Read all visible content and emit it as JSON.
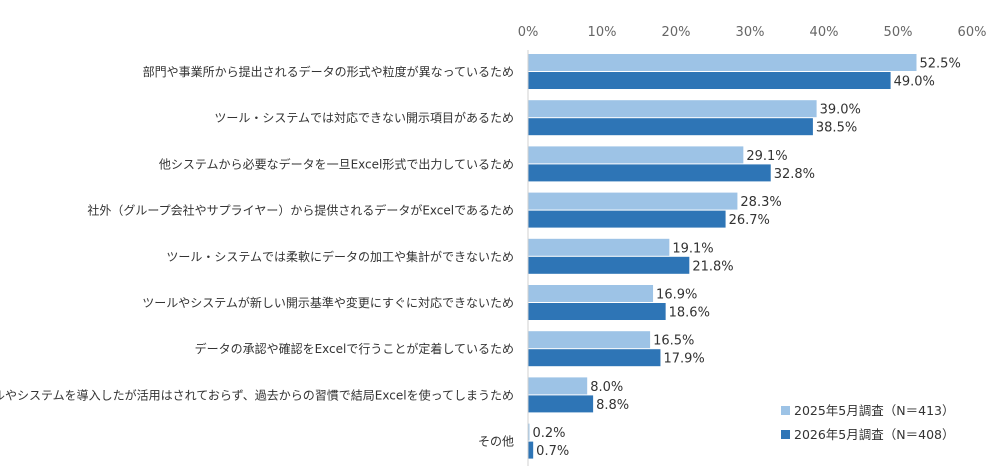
{
  "chart_data": {
    "type": "bar",
    "orientation": "horizontal",
    "title": "",
    "xlabel": "",
    "ylabel": "",
    "xlim": [
      0,
      60
    ],
    "x_ticks": [
      "0%",
      "10%",
      "20%",
      "30%",
      "40%",
      "50%",
      "60%"
    ],
    "grid": false,
    "legend_position": "bottom-right",
    "categories": [
      "部門や事業所から提出されるデータの形式や粒度が異なっているため",
      "ツール・システムでは対応できない開示項目があるため",
      "他システムから必要なデータを一旦Excel形式で出力しているため",
      "社外（グループ会社やサプライヤー）から提供されるデータがExcelであるため",
      "ツール・システムでは柔軟にデータの加工や集計ができないため",
      "ツールやシステムが新しい開示基準や変更にすぐに対応できないため",
      "データの承認や確認をExcelで行うことが定着しているため",
      "ツールやシステムを導入したが活用はされておらず、過去からの習慣で結局Excelを使ってしまうため",
      "その他"
    ],
    "series": [
      {
        "name": "2025年5月調査（N＝413）",
        "color": "#9dc3e6",
        "values": [
          52.5,
          39.0,
          29.1,
          28.3,
          19.1,
          16.9,
          16.5,
          8.0,
          0.2
        ],
        "labels": [
          "52.5%",
          "39.0%",
          "29.1%",
          "28.3%",
          "19.1%",
          "16.9%",
          "16.5%",
          "8.0%",
          "0.2%"
        ]
      },
      {
        "name": "2026年5月調査（N＝408）",
        "color": "#2e75b6",
        "values": [
          49.0,
          38.5,
          32.8,
          26.7,
          21.8,
          18.6,
          17.9,
          8.8,
          0.7
        ],
        "labels": [
          "49.0%",
          "38.5%",
          "32.8%",
          "26.7%",
          "21.8%",
          "18.6%",
          "17.9%",
          "8.8%",
          "0.7%"
        ]
      }
    ]
  }
}
